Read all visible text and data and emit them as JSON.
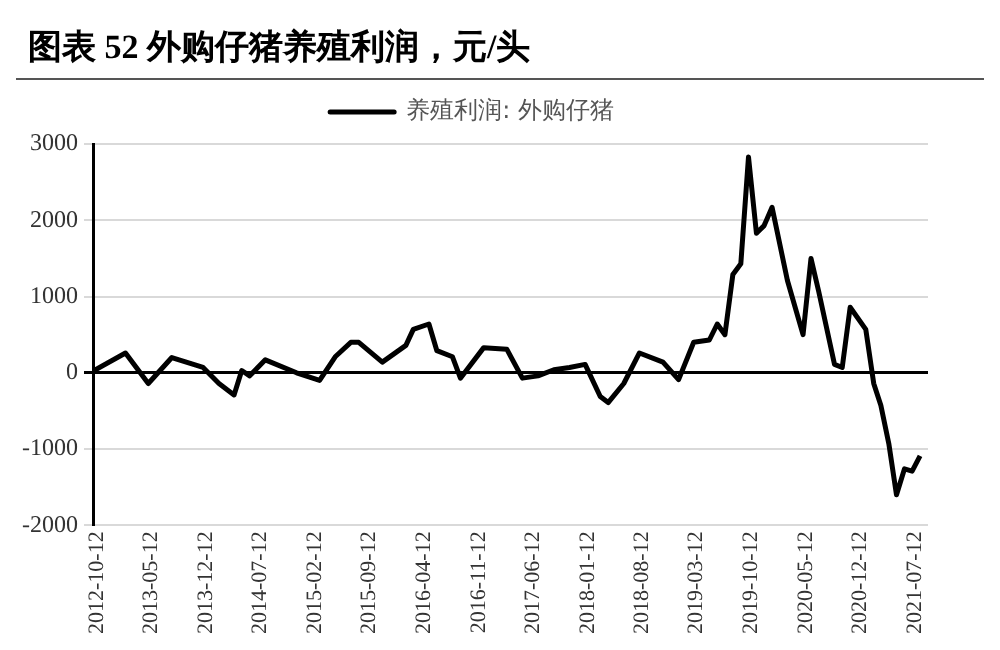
{
  "chart_data": {
    "type": "line",
    "title": "图表 52 外购仔猪养殖利润，元/头",
    "x": [
      "2012-10",
      "2013-02",
      "2013-05",
      "2013-08",
      "2013-12",
      "2014-02",
      "2014-04",
      "2014-05",
      "2014-06",
      "2014-08",
      "2014-12",
      "2015-03",
      "2015-05",
      "2015-07",
      "2015-08",
      "2015-11",
      "2016-02",
      "2016-03",
      "2016-05",
      "2016-06",
      "2016-08",
      "2016-09",
      "2016-12",
      "2017-03",
      "2017-05",
      "2017-07",
      "2017-09",
      "2017-11",
      "2018-01",
      "2018-03",
      "2018-04",
      "2018-06",
      "2018-08",
      "2018-11",
      "2019-01",
      "2019-03",
      "2019-05",
      "2019-06",
      "2019-07",
      "2019-08",
      "2019-09",
      "2019-10",
      "2019-11",
      "2019-12",
      "2020-01",
      "2020-03",
      "2020-05",
      "2020-06",
      "2020-07",
      "2020-09",
      "2020-10",
      "2020-11",
      "2021-01",
      "2021-02",
      "2021-03",
      "2021-04",
      "2021-05",
      "2021-06",
      "2021-07",
      "2021-08"
    ],
    "series": [
      {
        "name": "养殖利润: 外购仔猪",
        "color": "#000000",
        "values": [
          30,
          260,
          -140,
          200,
          70,
          -140,
          -290,
          30,
          -40,
          170,
          0,
          -100,
          210,
          400,
          400,
          140,
          360,
          570,
          640,
          290,
          210,
          -70,
          330,
          310,
          -70,
          -40,
          40,
          70,
          110,
          -310,
          -390,
          -140,
          260,
          140,
          -90,
          400,
          430,
          640,
          500,
          1290,
          1430,
          2830,
          1830,
          1930,
          2170,
          1210,
          500,
          1500,
          1070,
          110,
          70,
          860,
          570,
          -140,
          -430,
          -930,
          -1600,
          -1260,
          -1290,
          -1090
        ]
      }
    ],
    "xlim": [
      "2012-10-01",
      "2021-09-01"
    ],
    "xticks": [
      "2012-10-12",
      "2013-05-12",
      "2013-12-12",
      "2014-07-12",
      "2015-02-12",
      "2015-09-12",
      "2016-04-12",
      "2016-11-12",
      "2017-06-12",
      "2018-01-12",
      "2018-08-12",
      "2019-03-12",
      "2019-10-12",
      "2020-05-12",
      "2020-12-12",
      "2021-07-12"
    ],
    "ylim": [
      -2000,
      3000
    ],
    "yticks": [
      -2000,
      -1000,
      0,
      1000,
      2000,
      3000
    ],
    "grid": "y",
    "legend": "top",
    "marker": "none",
    "line_style": "solid"
  }
}
